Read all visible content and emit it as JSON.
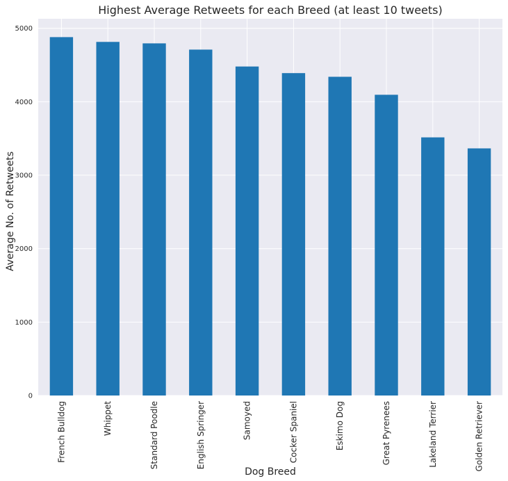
{
  "chart_data": {
    "type": "bar",
    "title": "Highest Average Retweets for each Breed (at least 10 tweets)",
    "xlabel": "Dog Breed",
    "ylabel": "Average No. of Retweets",
    "categories": [
      "French Bulldog",
      "Whippet",
      "Standard Poodle",
      "English Springer",
      "Samoyed",
      "Cocker Spaniel",
      "Eskimo Dog",
      "Great Pyrenees",
      "Lakeland Terrier",
      "Golden Retriever"
    ],
    "values": [
      4880,
      4815,
      4795,
      4710,
      4480,
      4390,
      4340,
      4095,
      3515,
      3365
    ],
    "ylim": [
      0,
      5130
    ],
    "yticks": [
      0,
      1000,
      2000,
      3000,
      4000,
      5000
    ],
    "ytick_labels": [
      "0",
      "1000",
      "2000",
      "3000",
      "4000",
      "5000"
    ],
    "grid": true,
    "bar_color": "#1f77b4",
    "axes_background": "#eaeaf2",
    "grid_color": "#ffffff"
  }
}
